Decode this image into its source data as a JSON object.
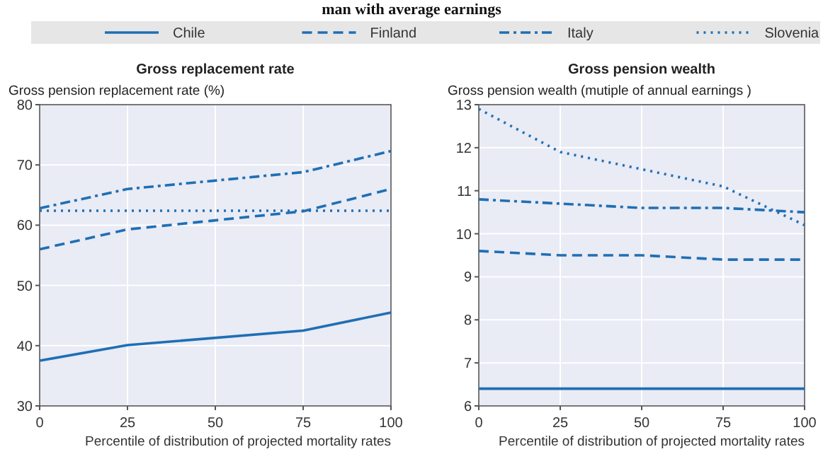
{
  "chart_data": [
    {
      "type": "line",
      "title": "man with average earnings",
      "subtitle": "Gross replacement rate",
      "ylabel": "Gross pension replacement rate (%)",
      "xlabel": "Percentile of distribution of projected mortality rates",
      "xlim": [
        0,
        100
      ],
      "xticks": [
        0,
        25,
        50,
        75,
        100
      ],
      "ylim": [
        30,
        80
      ],
      "yticks": [
        30,
        40,
        50,
        60,
        70,
        80
      ],
      "grid": true,
      "legend": "top",
      "marker": "none",
      "series": [
        {
          "name": "Chile",
          "color": "#1f6fb4",
          "line_style": "solid",
          "x": [
            0,
            25,
            75,
            100
          ],
          "values": [
            37.5,
            40.1,
            42.5,
            45.5
          ]
        },
        {
          "name": "Finland",
          "color": "#1f6fb4",
          "line_style": "dashed",
          "x": [
            0,
            25,
            75,
            100
          ],
          "values": [
            56,
            59.3,
            62.3,
            66
          ]
        },
        {
          "name": "Italy",
          "color": "#1f6fb4",
          "line_style": "dashdot",
          "x": [
            0,
            25,
            75,
            100
          ],
          "values": [
            62.8,
            66,
            68.8,
            72.3
          ]
        },
        {
          "name": "Slovenia",
          "color": "#1f6fb4",
          "line_style": "dotted",
          "x": [
            0,
            25,
            75,
            100
          ],
          "values": [
            62.4,
            62.4,
            62.4,
            62.4
          ]
        }
      ]
    },
    {
      "type": "line",
      "subtitle": "Gross pension wealth",
      "ylabel": "Gross pension wealth (mutiple of annual earnings )",
      "xlabel": "Percentile of distribution of projected mortality rates",
      "xlim": [
        0,
        100
      ],
      "xticks": [
        0,
        25,
        50,
        75,
        100
      ],
      "ylim": [
        6,
        13
      ],
      "yticks": [
        6,
        7,
        8,
        9,
        10,
        11,
        12,
        13
      ],
      "grid": true,
      "marker": "none",
      "series": [
        {
          "color": "#1f6fb4",
          "line_style": "solid",
          "x": [
            0,
            25,
            50,
            75,
            100
          ],
          "values": [
            6.4,
            6.4,
            6.4,
            6.4,
            6.4
          ]
        },
        {
          "color": "#1f6fb4",
          "line_style": "dashed",
          "x": [
            0,
            25,
            50,
            75,
            100
          ],
          "values": [
            9.6,
            9.5,
            9.5,
            9.4,
            9.4
          ]
        },
        {
          "color": "#1f6fb4",
          "line_style": "dashdot",
          "x": [
            0,
            25,
            50,
            75,
            100
          ],
          "values": [
            10.8,
            10.7,
            10.6,
            10.6,
            10.5
          ]
        },
        {
          "color": "#1f6fb4",
          "line_style": "dotted",
          "x": [
            0,
            25,
            50,
            75,
            100
          ],
          "values": [
            12.9,
            11.9,
            11.5,
            11.1,
            10.2
          ]
        }
      ]
    }
  ]
}
